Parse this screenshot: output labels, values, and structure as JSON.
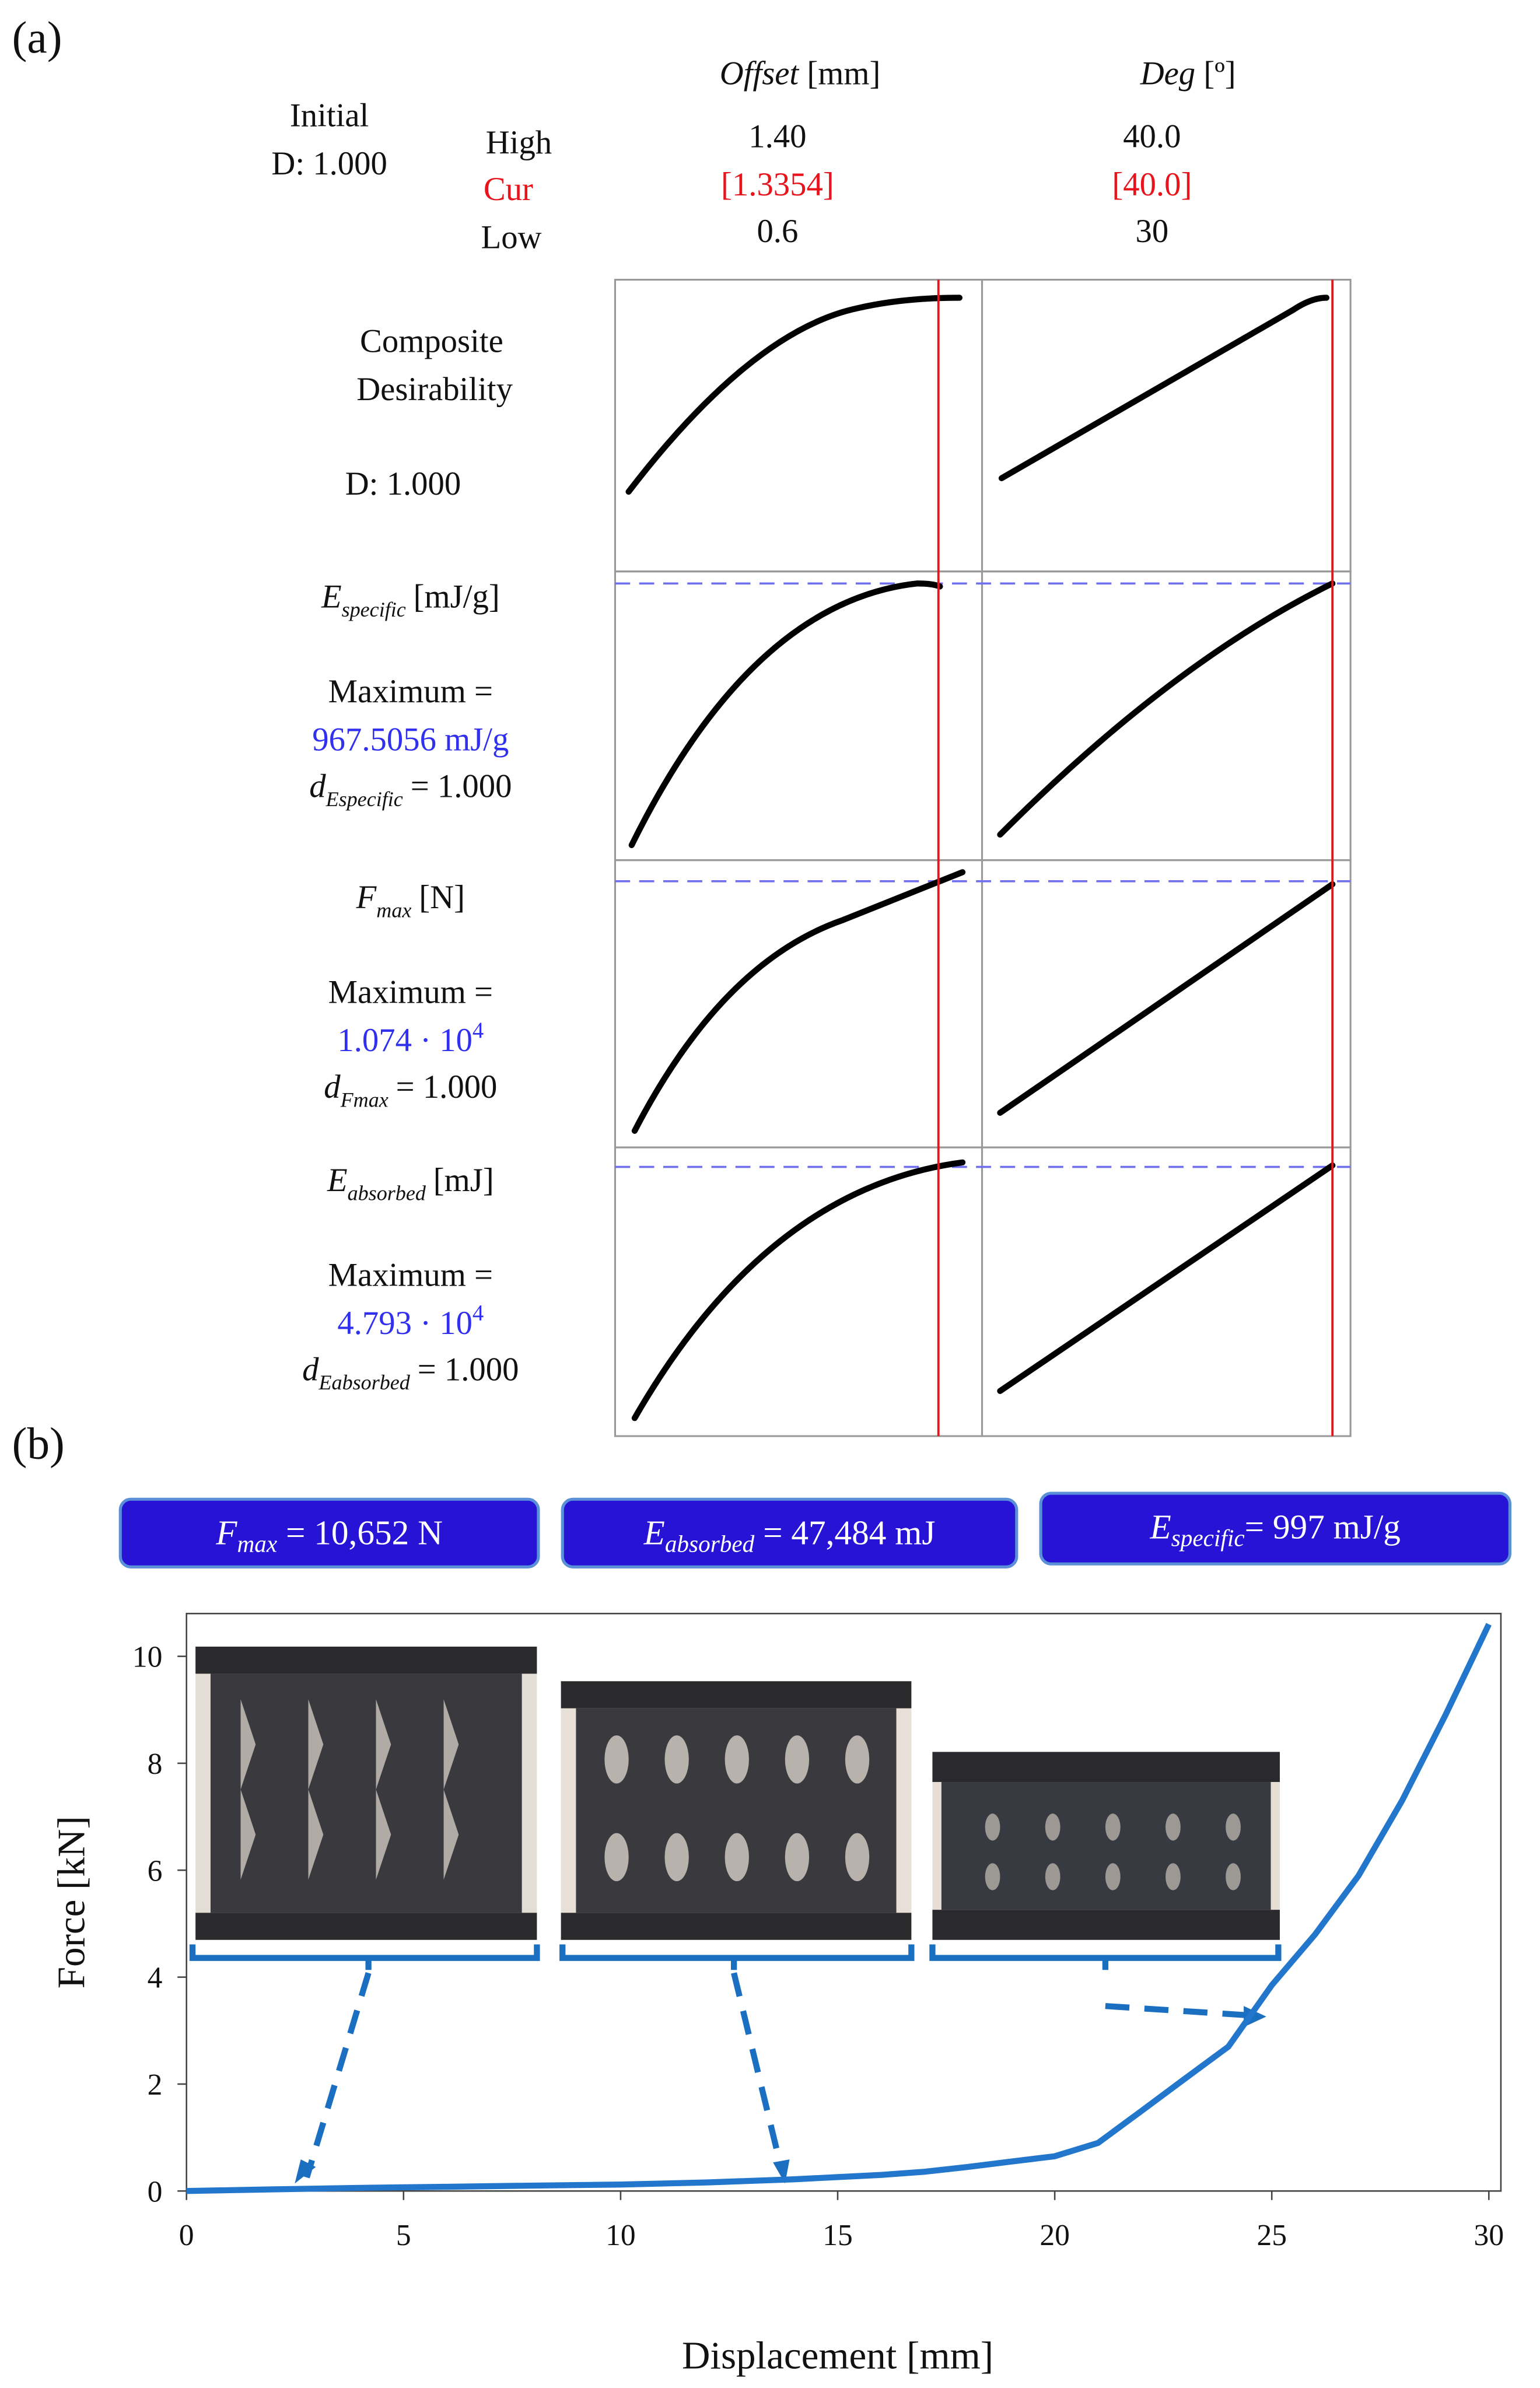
{
  "panel_a": {
    "label": "(a)",
    "initial": {
      "title": "Initial",
      "d": "D: 1.000"
    },
    "columns": [
      {
        "name": "Offset",
        "unit": "[mm]",
        "high": "1.40",
        "cur": "[1.3354]",
        "low": "0.6"
      },
      {
        "name": "Deg",
        "unit": "[º]",
        "high": "40.0",
        "cur": "[40.0]",
        "low": "30"
      }
    ],
    "row_labels": {
      "high": "High",
      "cur": "Cur",
      "low": "Low"
    },
    "composite": {
      "line1": "Composite",
      "line2": "Desirability",
      "d": "D: 1.000"
    },
    "responses": [
      {
        "symbol": "E",
        "subscript": "specific",
        "unit": "[mJ/g]",
        "goal": "Maximum =",
        "target": "967.5056 mJ/g",
        "d_symbol": "d",
        "d_subscript": "Especific",
        "d_value": "= 1.000"
      },
      {
        "symbol": "F",
        "subscript": "max",
        "unit": "[N]",
        "goal": "Maximum =",
        "target": "1.074 · 10",
        "target_exp": "4",
        "d_symbol": "d",
        "d_subscript": "Fmax",
        "d_value": "= 1.000"
      },
      {
        "symbol": "E",
        "subscript": "absorbed",
        "unit": "[mJ]",
        "goal": "Maximum =",
        "target": "4.793 · 10",
        "target_exp": "4",
        "d_symbol": "d",
        "d_subscript": "Eabsorbed",
        "d_value": "= 1.000"
      }
    ]
  },
  "panel_b": {
    "label": "(b)",
    "boxes": [
      {
        "symbol": "F",
        "subscript": "max",
        "text": " = 10,652 N"
      },
      {
        "symbol": "E",
        "subscript": "absorbed",
        "text": " = 47,484 mJ"
      },
      {
        "symbol": "E",
        "subscript": "specific",
        "text": "= 997 mJ/g"
      }
    ]
  },
  "chart_data": {
    "type": "line",
    "x_label": "Displacement [mm]",
    "y_label": "Force [kN]",
    "x": [
      0,
      2,
      4,
      6,
      8,
      10,
      12,
      14,
      16,
      17,
      18,
      19,
      20,
      21,
      22,
      23,
      24,
      25,
      26,
      27,
      28,
      29,
      30
    ],
    "series": [
      {
        "name": "Force",
        "color": "#2277cc",
        "values": [
          0,
          0.03,
          0.06,
          0.08,
          0.1,
          0.12,
          0.16,
          0.22,
          0.3,
          0.36,
          0.45,
          0.55,
          0.65,
          0.9,
          1.5,
          2.1,
          2.7,
          3.85,
          4.8,
          5.9,
          7.3,
          8.9,
          10.6
        ]
      }
    ],
    "xlim": [
      0,
      30
    ],
    "ylim": [
      0,
      10.8
    ],
    "xticks": [
      0,
      5,
      10,
      15,
      20,
      25,
      30
    ],
    "yticks": [
      0,
      2,
      4,
      6,
      8,
      10
    ],
    "grid": false
  }
}
